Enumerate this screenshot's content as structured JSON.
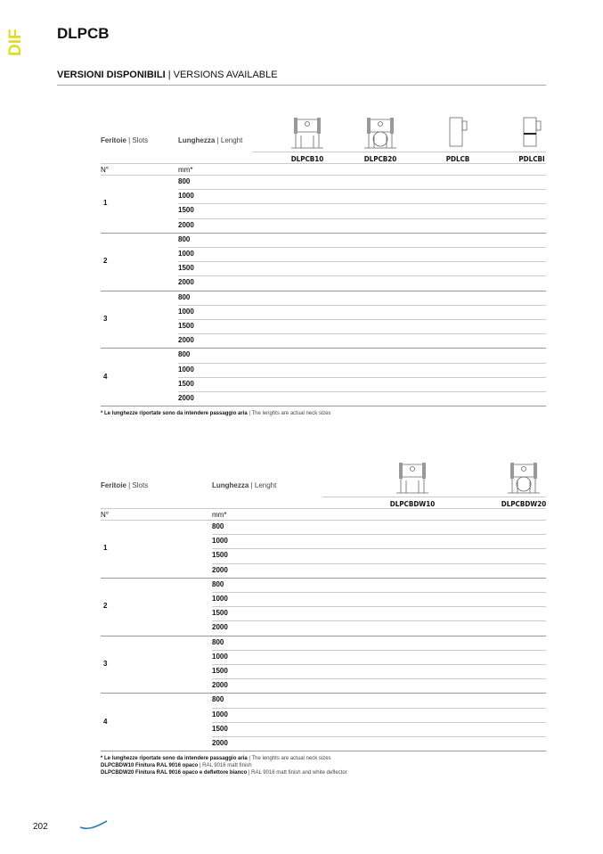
{
  "side_tab": "DIF",
  "title": "DLPCB",
  "section": {
    "bold": "VERSIONI DISPONIBILI",
    "sep": " | ",
    "rest": "VERSIONS AVAILABLE"
  },
  "tables": [
    {
      "slots_header": {
        "bold": "Feritoie",
        "rest": " | Slots"
      },
      "length_header": {
        "bold": "Lunghezza",
        "rest": " | Lenght"
      },
      "models": [
        "DLPCB10",
        "DLPCB20",
        "PDLCB",
        "PDLCBI"
      ],
      "unit_row": {
        "n": "N°",
        "mm": "mm*"
      },
      "groups": [
        {
          "slots": "1",
          "lengths": [
            "800",
            "1000",
            "1500",
            "2000"
          ]
        },
        {
          "slots": "2",
          "lengths": [
            "800",
            "1000",
            "1500",
            "2000"
          ]
        },
        {
          "slots": "3",
          "lengths": [
            "800",
            "1000",
            "1500",
            "2000"
          ]
        },
        {
          "slots": "4",
          "lengths": [
            "800",
            "1000",
            "1500",
            "2000"
          ]
        }
      ],
      "notes": [
        {
          "bold": "* Le lunghezze riportate sono da intendere passaggio aria",
          "rest": " | The lenghts are actual neck sizes"
        }
      ]
    },
    {
      "slots_header": {
        "bold": "Feritoie",
        "rest": " | Slots"
      },
      "length_header": {
        "bold": "Lunghezza",
        "rest": " | Lenght"
      },
      "models": [
        "DLPCBDW10",
        "DLPCBDW20"
      ],
      "unit_row": {
        "n": "N°",
        "mm": "mm*"
      },
      "groups": [
        {
          "slots": "1",
          "lengths": [
            "800",
            "1000",
            "1500",
            "2000"
          ]
        },
        {
          "slots": "2",
          "lengths": [
            "800",
            "1000",
            "1500",
            "2000"
          ]
        },
        {
          "slots": "3",
          "lengths": [
            "800",
            "1000",
            "1500",
            "2000"
          ]
        },
        {
          "slots": "4",
          "lengths": [
            "800",
            "1000",
            "1500",
            "2000"
          ]
        }
      ],
      "notes": [
        {
          "bold": "* Le lunghezze riportate sono da intendere passaggio aria",
          "rest": " | The lenghts are actual neck sizes"
        },
        {
          "bold": "DLPCBDW10 Finitura RAL 9016 opaco",
          "rest": " | RAL 9016 matt finish"
        },
        {
          "bold": "DLPCBDW20 Finitura RAL 9016 opaco e deflettore bianco",
          "rest": " | RAL 9016 matt finish and white deflector"
        }
      ]
    }
  ],
  "page_number": "202",
  "colors": {
    "accent": "#dede2a",
    "logo": "#2a7fb0"
  }
}
